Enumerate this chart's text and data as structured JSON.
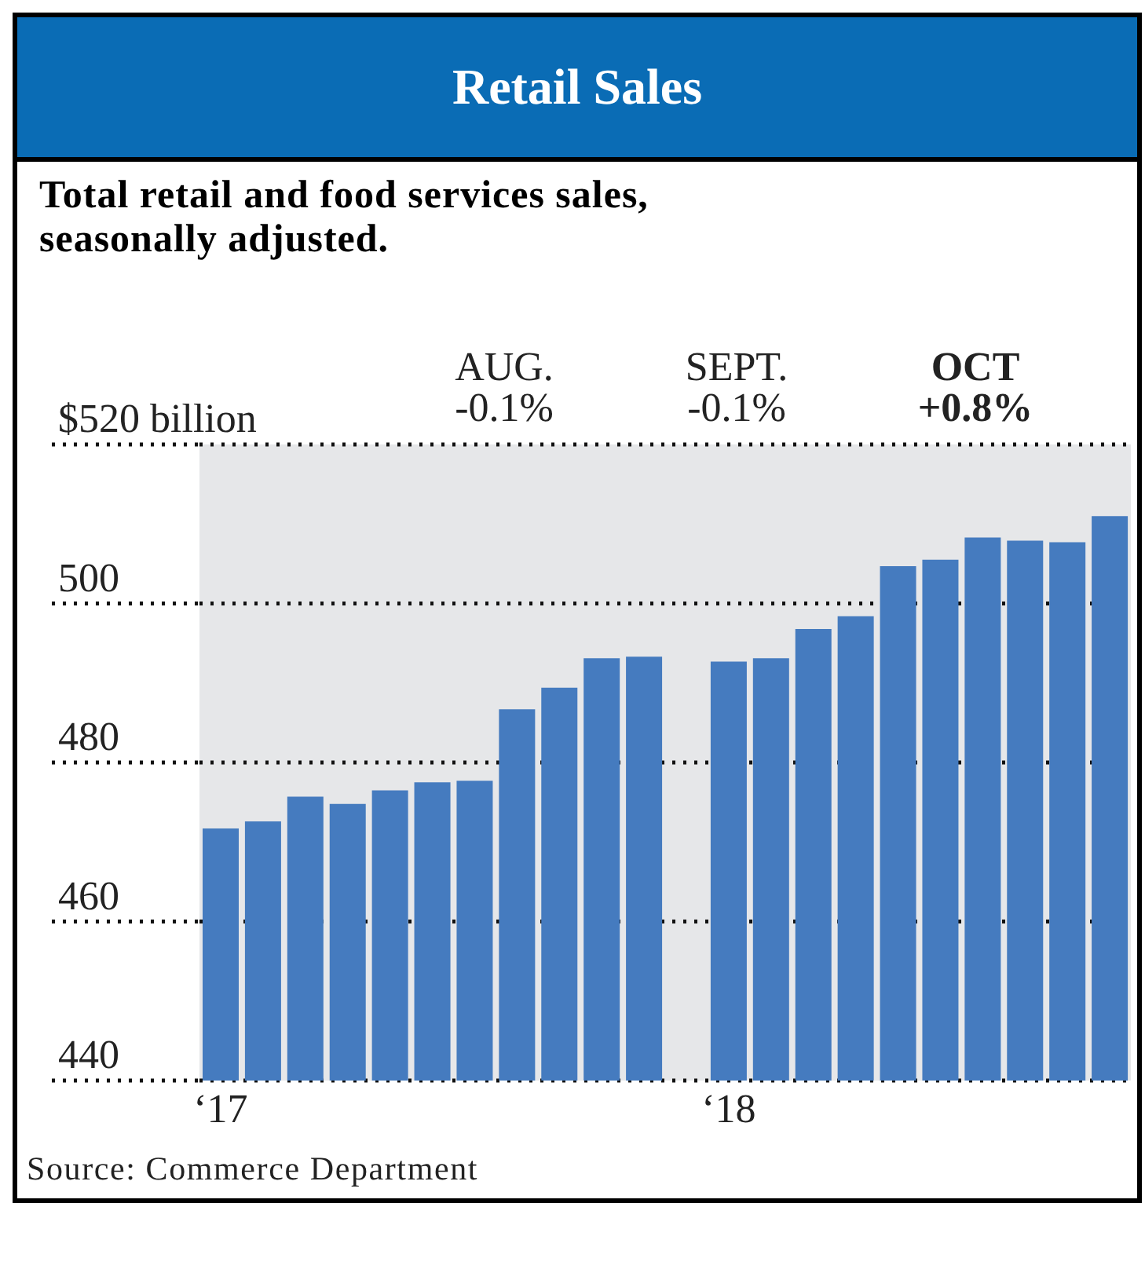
{
  "chart_data": {
    "type": "bar",
    "title": "Retail Sales",
    "subtitle": "Total retail and food services sales, seasonally adjusted.",
    "categories": [
      "‘17",
      null,
      null,
      null,
      null,
      null,
      null,
      null,
      null,
      null,
      null,
      null,
      "‘18",
      null,
      null,
      null,
      null,
      null,
      null,
      null,
      null,
      null
    ],
    "values": [
      471.7,
      472.6,
      475.7,
      474.8,
      476.5,
      477.5,
      477.7,
      486.7,
      489.4,
      493.1,
      493.3,
      null,
      492.7,
      493.1,
      496.8,
      498.4,
      504.7,
      505.5,
      508.3,
      507.9,
      507.7,
      511.0
    ],
    "color": "#457bbf",
    "ylim": [
      440,
      520
    ],
    "yticks": [
      440,
      460,
      480,
      500,
      {
        "value": 520,
        "label": "$520 billion"
      }
    ],
    "grid": "y",
    "annotations": [
      "AUG.\n-0.1%",
      "SEPT.\n-0.1%",
      "OCT\n+0.8%",
      "Source: Commerce Department"
    ]
  }
}
